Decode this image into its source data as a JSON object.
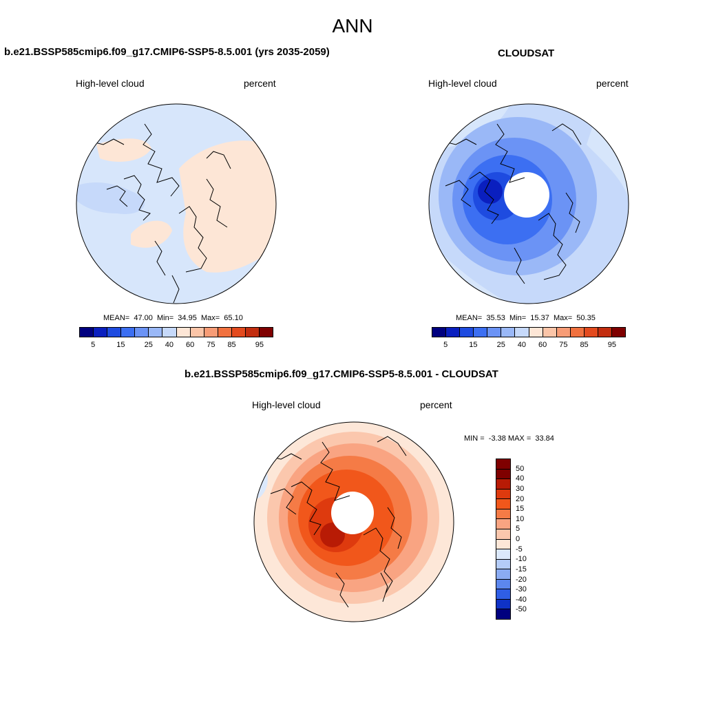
{
  "figure": {
    "title": "ANN"
  },
  "panels": {
    "model": {
      "title": "b.e21.BSSP585cmip6.f09_g17.CMIP6-SSP5-8.5.001 (yrs 2035-2059)",
      "left_label": "High-level cloud",
      "right_label": "percent",
      "stats": {
        "mean_label": "MEAN=",
        "mean": "47.00",
        "min_label": "Min=",
        "min": "34.95",
        "max_label": "Max=",
        "max": "65.10"
      },
      "colorbar_ticks": [
        "5",
        "15",
        "25",
        "40",
        "60",
        "75",
        "85",
        "95"
      ]
    },
    "obs": {
      "title": "CLOUDSAT",
      "left_label": "High-level cloud",
      "right_label": "percent",
      "stats": {
        "mean_label": "MEAN=",
        "mean": "35.53",
        "min_label": "Min=",
        "min": "15.37",
        "max_label": "Max=",
        "max": "50.35"
      },
      "colorbar_ticks": [
        "5",
        "15",
        "25",
        "40",
        "60",
        "75",
        "85",
        "95"
      ]
    },
    "diff": {
      "title": "b.e21.BSSP585cmip6.f09_g17.CMIP6-SSP5-8.5.001 - CLOUDSAT",
      "left_label": "High-level cloud",
      "right_label": "percent",
      "stats": {
        "min_label": "MIN =",
        "min": "-3.38",
        "max_label": "MAX =",
        "max": "33.84"
      },
      "colorbar_ticks": [
        "50",
        "40",
        "30",
        "20",
        "15",
        "10",
        "5",
        "0",
        "-5",
        "-10",
        "-15",
        "-20",
        "-30",
        "-40",
        "-50"
      ]
    }
  },
  "colors": {
    "field_scale": [
      "#00007f",
      "#0a1fbf",
      "#1e4be0",
      "#3c6ff2",
      "#6b93f5",
      "#9ab8f7",
      "#c6d9fa",
      "#fde6d6",
      "#fbc5a8",
      "#f79c76",
      "#f1713f",
      "#e34a1e",
      "#c22d0f",
      "#7f0000"
    ],
    "diff_scale": [
      "#7f0000",
      "#b81b05",
      "#de3a0e",
      "#f1571b",
      "#f57b46",
      "#f9a482",
      "#fbc7ad",
      "#fde7d8",
      "#dbe8fb",
      "#b4ccf8",
      "#8aabf3",
      "#5c87ee",
      "#2f5ee6",
      "#0f32c6",
      "#00007f"
    ],
    "missing": "#ffffff",
    "coastline": "#000000"
  }
}
